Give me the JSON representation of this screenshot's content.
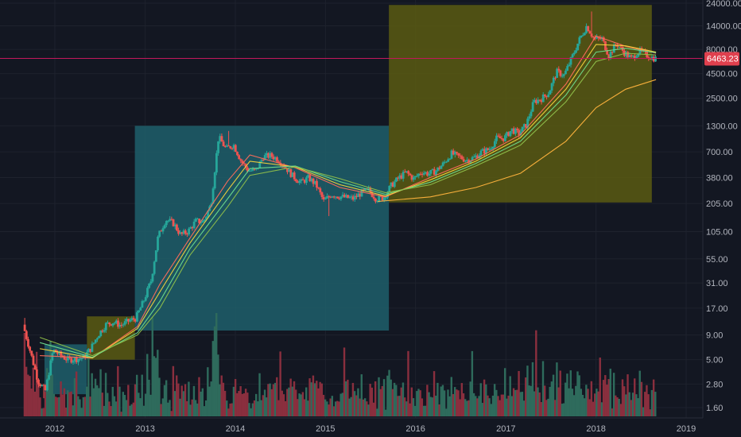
{
  "colors": {
    "background": "#131722",
    "grid": "#1e222d",
    "axis_text": "#b2b5be",
    "candle_up": "#26a69a",
    "candle_down": "#ef5350",
    "up_volume": "#2e6b5c",
    "down_volume": "#8a2f3e",
    "teal_box": "#1f5f6b",
    "olive_box": "#5b5a12",
    "price_line": "#c2185b",
    "price_tag_bg": "#e0404e",
    "ma_colors": [
      "#ff6d5a",
      "#f5d33b",
      "#6fdc8c",
      "#8fbf4a",
      "#ffb33d"
    ]
  },
  "chart_data": {
    "type": "candlestick",
    "title": "",
    "xlabel": "",
    "ylabel": "",
    "yscale": "log",
    "grid": true,
    "x_tick_labels": [
      "2012",
      "2013",
      "2014",
      "2015",
      "2016",
      "2017",
      "2018",
      "2019"
    ],
    "y_tick_labels": [
      "24000.00",
      "14000.00",
      "8000.00",
      "4500.00",
      "2500.00",
      "1300.00",
      "700.00",
      "380.00",
      "205.00",
      "105.00",
      "55.00",
      "31.00",
      "17.00",
      "9.00",
      "5.00",
      "2.80",
      "1.60"
    ],
    "y_ticks": [
      24000,
      14000,
      8000,
      4500,
      2500,
      1300,
      700,
      380,
      205,
      105,
      55,
      31,
      17,
      9,
      5,
      2.8,
      1.6
    ],
    "current_price": 6463.23,
    "current_price_label": "6463.23",
    "price_path": [
      [
        "2011-09-01",
        11.5
      ],
      [
        "2011-10-01",
        6.0
      ],
      [
        "2011-11-01",
        3.0
      ],
      [
        "2011-12-01",
        2.4
      ],
      [
        "2012-01-01",
        6.3
      ],
      [
        "2012-02-01",
        5.5
      ],
      [
        "2012-03-01",
        5.0
      ],
      [
        "2012-04-01",
        5.1
      ],
      [
        "2012-05-01",
        5.2
      ],
      [
        "2012-06-01",
        6.5
      ],
      [
        "2012-07-01",
        9.0
      ],
      [
        "2012-08-01",
        11.5
      ],
      [
        "2012-09-01",
        12.3
      ],
      [
        "2012-10-01",
        11.3
      ],
      [
        "2012-11-01",
        12.5
      ],
      [
        "2012-12-01",
        13.4
      ],
      [
        "2013-01-01",
        20.0
      ],
      [
        "2013-02-01",
        33.0
      ],
      [
        "2013-03-01",
        93.0
      ],
      [
        "2013-04-01",
        140.0
      ],
      [
        "2013-05-01",
        129.0
      ],
      [
        "2013-06-01",
        97.0
      ],
      [
        "2013-07-01",
        106.0
      ],
      [
        "2013-08-01",
        135.0
      ],
      [
        "2013-09-01",
        133.0
      ],
      [
        "2013-10-01",
        200.0
      ],
      [
        "2013-11-01",
        1000.0
      ],
      [
        "2013-12-01",
        750.0
      ],
      [
        "2014-01-01",
        830.0
      ],
      [
        "2014-02-01",
        560.0
      ],
      [
        "2014-03-01",
        450.0
      ],
      [
        "2014-04-01",
        445.0
      ],
      [
        "2014-05-01",
        625.0
      ],
      [
        "2014-06-01",
        640.0
      ],
      [
        "2014-07-01",
        585.0
      ],
      [
        "2014-08-01",
        480.0
      ],
      [
        "2014-09-01",
        386.0
      ],
      [
        "2014-10-01",
        338.0
      ],
      [
        "2014-11-01",
        378.0
      ],
      [
        "2014-12-01",
        320.0
      ],
      [
        "2015-01-01",
        217.0
      ],
      [
        "2015-02-01",
        254.0
      ],
      [
        "2015-03-01",
        244.0
      ],
      [
        "2015-04-01",
        236.0
      ],
      [
        "2015-05-01",
        230.0
      ],
      [
        "2015-06-01",
        263.0
      ],
      [
        "2015-07-01",
        284.0
      ],
      [
        "2015-08-01",
        230.0
      ],
      [
        "2015-09-01",
        236.0
      ],
      [
        "2015-10-01",
        314.0
      ],
      [
        "2015-11-01",
        377.0
      ],
      [
        "2015-12-01",
        430.0
      ],
      [
        "2016-01-01",
        368.0
      ],
      [
        "2016-02-01",
        437.0
      ],
      [
        "2016-03-01",
        416.0
      ],
      [
        "2016-04-01",
        448.0
      ],
      [
        "2016-05-01",
        531.0
      ],
      [
        "2016-06-01",
        673.0
      ],
      [
        "2016-07-01",
        624.0
      ],
      [
        "2016-08-01",
        575.0
      ],
      [
        "2016-09-01",
        609.0
      ],
      [
        "2016-10-01",
        700.0
      ],
      [
        "2016-11-01",
        742.0
      ],
      [
        "2016-12-01",
        963.0
      ],
      [
        "2017-01-01",
        970.0
      ],
      [
        "2017-02-01",
        1190.0
      ],
      [
        "2017-03-01",
        1080.0
      ],
      [
        "2017-04-01",
        1350.0
      ],
      [
        "2017-05-01",
        2300.0
      ],
      [
        "2017-06-01",
        2480.0
      ],
      [
        "2017-07-01",
        2875.0
      ],
      [
        "2017-08-01",
        4700.0
      ],
      [
        "2017-09-01",
        4340.0
      ],
      [
        "2017-10-01",
        6470.0
      ],
      [
        "2017-11-01",
        10000.0
      ],
      [
        "2017-12-01",
        14000.0
      ],
      [
        "2018-01-01",
        10200.0
      ],
      [
        "2018-02-01",
        10300.0
      ],
      [
        "2018-03-01",
        6900.0
      ],
      [
        "2018-04-01",
        9200.0
      ],
      [
        "2018-05-01",
        7500.0
      ],
      [
        "2018-06-01",
        6400.0
      ],
      [
        "2018-07-01",
        7730.0
      ],
      [
        "2018-08-01",
        7000.0
      ],
      [
        "2018-09-01",
        6463.23
      ]
    ],
    "price_extremes": [
      [
        "2013-12-04",
        1150.0,
        "high"
      ],
      [
        "2015-01-14",
        152.0,
        "low"
      ],
      [
        "2017-12-17",
        19700.0,
        "high"
      ],
      [
        "2011-11-18",
        2.0,
        "low"
      ],
      [
        "2011-07-01",
        13.5,
        "high"
      ]
    ],
    "moving_averages": [
      {
        "points": [
          [
            "2011-11-01",
            5.5
          ],
          [
            "2012-06-01",
            5.2
          ],
          [
            "2012-12-01",
            11.0
          ],
          [
            "2013-03-01",
            30.0
          ],
          [
            "2013-07-01",
            90.0
          ],
          [
            "2013-12-01",
            350.0
          ],
          [
            "2014-03-01",
            650.0
          ],
          [
            "2014-09-01",
            480.0
          ],
          [
            "2015-03-01",
            300.0
          ],
          [
            "2015-09-01",
            240.0
          ],
          [
            "2016-03-01",
            380.0
          ],
          [
            "2016-09-01",
            590.0
          ],
          [
            "2017-03-01",
            1050.0
          ],
          [
            "2017-09-01",
            3500.0
          ],
          [
            "2018-01-01",
            11000.0
          ],
          [
            "2018-05-01",
            8600.0
          ],
          [
            "2018-09-01",
            7300.0
          ]
        ]
      },
      {
        "points": [
          [
            "2011-11-01",
            6.5
          ],
          [
            "2012-06-01",
            5.2
          ],
          [
            "2012-12-01",
            10.5
          ],
          [
            "2013-03-01",
            25.0
          ],
          [
            "2013-07-01",
            80.0
          ],
          [
            "2013-12-01",
            280.0
          ],
          [
            "2014-03-01",
            560.0
          ],
          [
            "2014-09-01",
            490.0
          ],
          [
            "2015-03-01",
            320.0
          ],
          [
            "2015-09-01",
            245.0
          ],
          [
            "2016-03-01",
            360.0
          ],
          [
            "2016-09-01",
            560.0
          ],
          [
            "2017-03-01",
            980.0
          ],
          [
            "2017-09-01",
            3100.0
          ],
          [
            "2018-01-01",
            9000.0
          ],
          [
            "2018-05-01",
            8700.0
          ],
          [
            "2018-09-01",
            7500.0
          ]
        ]
      },
      {
        "points": [
          [
            "2011-11-01",
            7.5
          ],
          [
            "2012-06-01",
            5.3
          ],
          [
            "2012-12-01",
            9.5
          ],
          [
            "2013-03-01",
            20.0
          ],
          [
            "2013-07-01",
            70.0
          ],
          [
            "2013-12-01",
            230.0
          ],
          [
            "2014-03-01",
            470.0
          ],
          [
            "2014-09-01",
            500.0
          ],
          [
            "2015-03-01",
            345.0
          ],
          [
            "2015-09-01",
            255.0
          ],
          [
            "2016-03-01",
            340.0
          ],
          [
            "2016-09-01",
            530.0
          ],
          [
            "2017-03-01",
            900.0
          ],
          [
            "2017-09-01",
            2700.0
          ],
          [
            "2018-01-01",
            7500.0
          ],
          [
            "2018-05-01",
            8200.0
          ],
          [
            "2018-09-01",
            7400.0
          ]
        ]
      },
      {
        "points": [
          [
            "2011-11-01",
            8.5
          ],
          [
            "2012-06-01",
            5.5
          ],
          [
            "2012-12-01",
            9.0
          ],
          [
            "2013-03-01",
            17.0
          ],
          [
            "2013-07-01",
            60.0
          ],
          [
            "2013-12-01",
            190.0
          ],
          [
            "2014-03-01",
            400.0
          ],
          [
            "2014-09-01",
            490.0
          ],
          [
            "2015-03-01",
            370.0
          ],
          [
            "2015-09-01",
            265.0
          ],
          [
            "2016-03-01",
            320.0
          ],
          [
            "2016-09-01",
            500.0
          ],
          [
            "2017-03-01",
            820.0
          ],
          [
            "2017-09-01",
            2300.0
          ],
          [
            "2018-01-01",
            6000.0
          ],
          [
            "2018-05-01",
            7300.0
          ],
          [
            "2018-09-01",
            7000.0
          ]
        ]
      },
      {
        "points": [
          [
            "2015-08-01",
            215.0
          ],
          [
            "2016-03-01",
            240.0
          ],
          [
            "2016-09-01",
            300.0
          ],
          [
            "2017-03-01",
            420.0
          ],
          [
            "2017-09-01",
            900.0
          ],
          [
            "2018-01-01",
            2000.0
          ],
          [
            "2018-05-01",
            3100.0
          ],
          [
            "2018-09-01",
            3900.0
          ]
        ]
      }
    ],
    "highlight_boxes": [
      {
        "color": "teal",
        "x0": "2011-11-20",
        "x1": "2012-05-10",
        "y_low": 2.2,
        "y_high": 7.2
      },
      {
        "color": "olive",
        "x0": "2012-05-10",
        "x1": "2012-11-20",
        "y_low": 5.0,
        "y_high": 14.0
      },
      {
        "color": "teal",
        "x0": "2012-11-20",
        "x1": "2015-09-15",
        "y_low": 10.0,
        "y_high": 1300.0
      },
      {
        "color": "olive",
        "x0": "2015-09-15",
        "x1": "2018-08-15",
        "y_low": 210.0,
        "y_high": 23000.0
      }
    ]
  }
}
